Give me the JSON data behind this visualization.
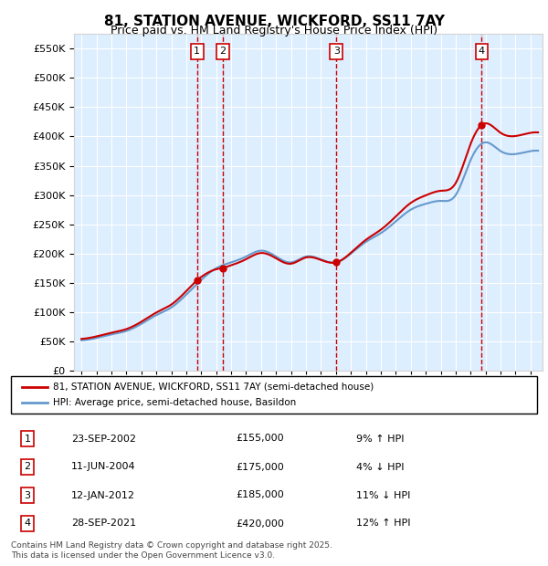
{
  "title": "81, STATION AVENUE, WICKFORD, SS11 7AY",
  "subtitle": "Price paid vs. HM Land Registry's House Price Index (HPI)",
  "legend_line1": "81, STATION AVENUE, WICKFORD, SS11 7AY (semi-detached house)",
  "legend_line2": "HPI: Average price, semi-detached house, Basildon",
  "transactions": [
    {
      "num": 1,
      "date": "23-SEP-2002",
      "price": 155000,
      "pct": "9%",
      "dir": "↑",
      "year": 2002.72
    },
    {
      "num": 2,
      "date": "11-JUN-2004",
      "price": 175000,
      "pct": "4%",
      "dir": "↓",
      "year": 2004.44
    },
    {
      "num": 3,
      "date": "12-JAN-2012",
      "price": 185000,
      "pct": "11%",
      "dir": "↓",
      "year": 2012.03
    },
    {
      "num": 4,
      "date": "28-SEP-2021",
      "price": 420000,
      "pct": "12%",
      "dir": "↑",
      "year": 2021.74
    }
  ],
  "footer": "Contains HM Land Registry data © Crown copyright and database right 2025.\nThis data is licensed under the Open Government Licence v3.0.",
  "line_color_paid": "#cc0000",
  "line_color_hpi": "#6699cc",
  "bg_color": "#ddeeff",
  "ylim": [
    0,
    575000
  ],
  "xlim_start": 1994.5,
  "xlim_end": 2025.8
}
